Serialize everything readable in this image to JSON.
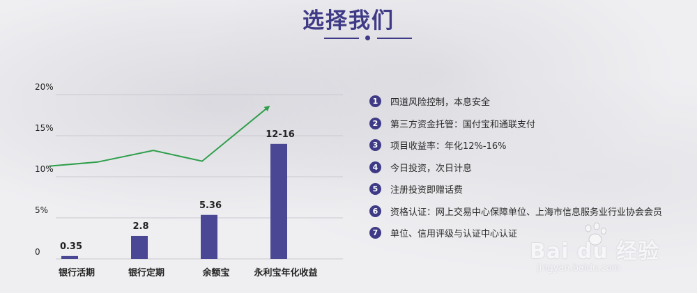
{
  "title": "选择我们",
  "chart_data": {
    "type": "bar",
    "categories": [
      "银行活期",
      "银行定期",
      "余额宝",
      "永利宝年化收益"
    ],
    "values": [
      0.35,
      2.8,
      5.36,
      14
    ],
    "value_labels": [
      "0.35",
      "2.8",
      "5.36",
      "12-16"
    ],
    "yticks": [
      {
        "value": 0,
        "label": "0"
      },
      {
        "value": 5,
        "label": "5%"
      },
      {
        "value": 10,
        "label": "10%"
      },
      {
        "value": 15,
        "label": "15%"
      },
      {
        "value": 20,
        "label": "20%"
      }
    ],
    "ylim": [
      0,
      20
    ],
    "grid": true,
    "trend_line": {
      "color": "#2e9e4a",
      "points": [
        [
          -0.3,
          11.3
        ],
        [
          0.4,
          11.8
        ],
        [
          1.2,
          13.2
        ],
        [
          1.9,
          11.9
        ],
        [
          2.85,
          18.5
        ]
      ]
    },
    "bar_color": "#4a4795"
  },
  "features": [
    {
      "num": "1",
      "text": "四道风险控制，本息安全"
    },
    {
      "num": "2",
      "text": "第三方资金托管：国付宝和通联支付"
    },
    {
      "num": "3",
      "text": "项目收益率：年化12%-16%"
    },
    {
      "num": "4",
      "text": "今日投资，次日计息"
    },
    {
      "num": "5",
      "text": "注册投资即赠话费"
    },
    {
      "num": "6",
      "text": "资格认证：网上交易中心保障单位、上海市信息服务业行业协会会员"
    },
    {
      "num": "7",
      "text": "单位、信用评级与认证中心认证"
    }
  ],
  "watermark": {
    "logo": "Bai du 经验",
    "url": "jingyan.baidu.com"
  }
}
